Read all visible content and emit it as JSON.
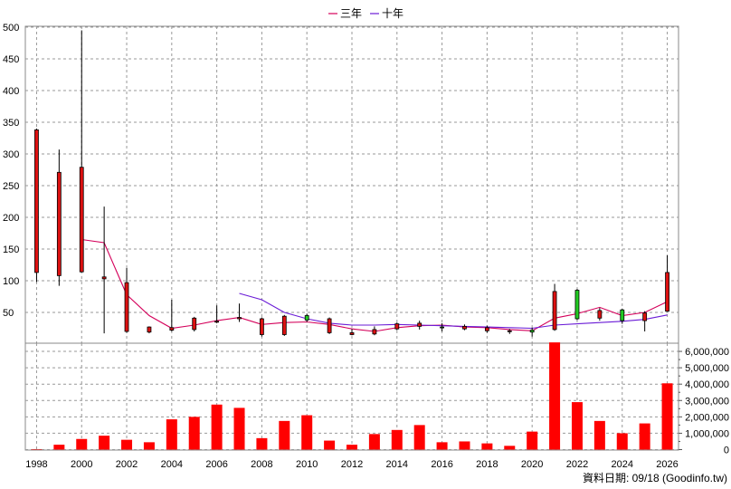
{
  "chart_data": [
    {
      "type": "candlestick",
      "panel": "price",
      "legend_position": "top-center",
      "legend": [
        {
          "label": "三年",
          "color": "#d4005a"
        },
        {
          "label": "十年",
          "color": "#6a1bd6"
        }
      ],
      "ylim": [
        0,
        500
      ],
      "yticks": [
        50,
        100,
        150,
        200,
        250,
        300,
        350,
        400,
        450,
        500
      ],
      "grid": true,
      "up_color": "#dd1111",
      "down_color": "#22cc22",
      "candles": [
        {
          "x": 1998.0,
          "open": 113,
          "close": 338,
          "high": 340,
          "low": 98
        },
        {
          "x": 1999.0,
          "open": 108,
          "close": 271,
          "high": 307,
          "low": 92
        },
        {
          "x": 2000.0,
          "open": 114,
          "close": 279,
          "high": 495,
          "low": 113
        },
        {
          "x": 2001.0,
          "open": 103,
          "close": 106,
          "high": 217,
          "low": 17
        },
        {
          "x": 2002.0,
          "open": 20,
          "close": 97,
          "high": 120,
          "low": 18
        },
        {
          "x": 2003.0,
          "open": 19,
          "close": 27,
          "high": 28,
          "low": 17
        },
        {
          "x": 2004.0,
          "open": 22,
          "close": 26,
          "high": 70,
          "low": 20
        },
        {
          "x": 2005.0,
          "open": 23,
          "close": 41,
          "high": 43,
          "low": 20
        },
        {
          "x": 2006.0,
          "open": 35,
          "close": 36,
          "high": 61,
          "low": 33
        },
        {
          "x": 2007.0,
          "open": 40,
          "close": 42,
          "high": 64,
          "low": 35
        },
        {
          "x": 2008.0,
          "open": 15,
          "close": 40,
          "high": 42,
          "low": 12
        },
        {
          "x": 2009.0,
          "open": 15,
          "close": 44,
          "high": 46,
          "low": 13
        },
        {
          "x": 2010.0,
          "open": 45,
          "close": 38,
          "high": 48,
          "low": 35
        },
        {
          "x": 2011.0,
          "open": 18,
          "close": 40,
          "high": 42,
          "low": 16
        },
        {
          "x": 2012.0,
          "open": 15,
          "close": 18,
          "high": 24,
          "low": 14
        },
        {
          "x": 2013.0,
          "open": 16,
          "close": 23,
          "high": 28,
          "low": 14
        },
        {
          "x": 2014.0,
          "open": 24,
          "close": 32,
          "high": 34,
          "low": 22
        },
        {
          "x": 2015.0,
          "open": 28,
          "close": 33,
          "high": 37,
          "low": 23
        },
        {
          "x": 2016.0,
          "open": 27,
          "close": 26,
          "high": 33,
          "low": 20
        },
        {
          "x": 2017.0,
          "open": 24,
          "close": 28,
          "high": 31,
          "low": 22
        },
        {
          "x": 2018.0,
          "open": 21,
          "close": 26,
          "high": 29,
          "low": 18
        },
        {
          "x": 2019.0,
          "open": 20,
          "close": 21,
          "high": 24,
          "low": 16
        },
        {
          "x": 2020.0,
          "open": 22,
          "close": 19,
          "high": 26,
          "low": 12
        },
        {
          "x": 2021.0,
          "open": 23,
          "close": 83,
          "high": 95,
          "low": 21
        },
        {
          "x": 2022.0,
          "open": 85,
          "close": 40,
          "high": 87,
          "low": 38
        },
        {
          "x": 2023.0,
          "open": 41,
          "close": 53,
          "high": 57,
          "low": 37
        },
        {
          "x": 2024.0,
          "open": 54,
          "close": 37,
          "high": 56,
          "low": 32
        },
        {
          "x": 2025.0,
          "open": 37,
          "close": 49,
          "high": 52,
          "low": 20
        },
        {
          "x": 2026.0,
          "open": 52,
          "close": 113,
          "high": 140,
          "low": 51
        }
      ],
      "ma_series": [
        {
          "name": "三年",
          "color": "#d4005a",
          "x": [
            2000.0,
            2001.0,
            2002.0,
            2003.0,
            2004.0,
            2005.0,
            2006.0,
            2007.0,
            2008.0,
            2009.0,
            2010.0,
            2011.0,
            2012.0,
            2013.0,
            2014.0,
            2015.0,
            2016.0,
            2017.0,
            2018.0,
            2019.0,
            2020.0,
            2021.0,
            2022.0,
            2023.0,
            2024.0,
            2025.0,
            2026.0
          ],
          "y": [
            165,
            160,
            78,
            45,
            25,
            30,
            37,
            42,
            31,
            34,
            35,
            31,
            24,
            20,
            26,
            29,
            30,
            27,
            26,
            23,
            21,
            41,
            48,
            58,
            45,
            50,
            67
          ]
        },
        {
          "name": "十年",
          "color": "#6a1bd6",
          "x": [
            2007.0,
            2008.0,
            2009.0,
            2010.0,
            2011.0,
            2012.0,
            2013.0,
            2014.0,
            2015.0,
            2016.0,
            2017.0,
            2018.0,
            2019.0,
            2020.0,
            2021.0,
            2022.0,
            2023.0,
            2024.0,
            2025.0,
            2026.0
          ],
          "y": [
            80,
            70,
            50,
            40,
            33,
            30,
            30,
            31,
            30,
            29,
            28,
            27,
            26,
            25,
            30,
            32,
            34,
            36,
            39,
            46
          ]
        }
      ]
    },
    {
      "type": "bar",
      "panel": "volume",
      "ylim": [
        0,
        6500000
      ],
      "yticks": [
        0,
        1000000,
        2000000,
        3000000,
        4000000,
        5000000,
        6000000
      ],
      "ytick_labels": [
        "0",
        "1,000,000",
        "2,000,000",
        "3,000,000",
        "4,000,000",
        "5,000,000",
        "6,000,000"
      ],
      "grid": true,
      "bar_color": "#ff0000",
      "x": [
        1998.0,
        1999.0,
        2000.0,
        2001.0,
        2002.0,
        2003.0,
        2004.0,
        2005.0,
        2006.0,
        2007.0,
        2008.0,
        2009.0,
        2010.0,
        2011.0,
        2012.0,
        2013.0,
        2014.0,
        2015.0,
        2016.0,
        2017.0,
        2018.0,
        2019.0,
        2020.0,
        2021.0,
        2022.0,
        2023.0,
        2024.0,
        2025.0,
        2026.0
      ],
      "values": [
        30000,
        300000,
        650000,
        850000,
        600000,
        450000,
        1850000,
        2000000,
        2750000,
        2550000,
        700000,
        1750000,
        2100000,
        550000,
        300000,
        950000,
        1200000,
        1500000,
        450000,
        500000,
        380000,
        230000,
        1100000,
        6550000,
        2900000,
        1750000,
        1000000,
        1600000,
        4050000
      ]
    }
  ],
  "xaxis": {
    "range": [
      1997.5,
      2026.5
    ],
    "ticks": [
      "1998",
      "2000",
      "2002",
      "2004",
      "2006",
      "2008",
      "2010",
      "2012",
      "2014",
      "2016",
      "2018",
      "2020",
      "2022",
      "2024",
      "2026"
    ]
  },
  "footer": {
    "text": "資料日期: 09/18  (Goodinfo.tw)"
  }
}
